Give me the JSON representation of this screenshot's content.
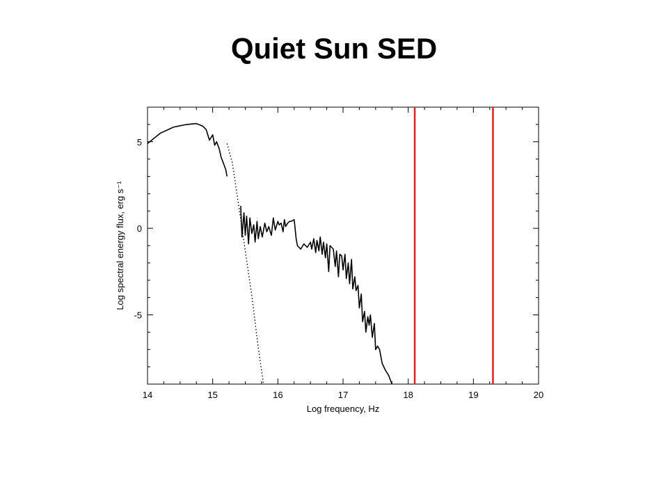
{
  "slide": {
    "title": "Quiet Sun SED"
  },
  "chart_data": {
    "type": "line",
    "title": "Quiet Sun SED",
    "xlabel": "Log frequency, Hz",
    "ylabel": "Log spectral energy flux, erg s⁻¹",
    "xlim": [
      14,
      20
    ],
    "ylim": [
      -9,
      7
    ],
    "x_ticks": [
      14,
      15,
      16,
      17,
      18,
      19,
      20
    ],
    "y_ticks": [
      5,
      0,
      -5
    ],
    "grid": false,
    "colors": {
      "observed": "#000000",
      "blackbody": "#000000",
      "markers": "#e02020"
    },
    "series": [
      {
        "style": "solid",
        "segments": [
          {
            "x": [
              14.0,
              14.2,
              14.4,
              14.6,
              14.75,
              14.85,
              14.9,
              14.95,
              15.0,
              15.03,
              15.06,
              15.1,
              15.13,
              15.16,
              15.2,
              15.22
            ],
            "y": [
              4.9,
              5.5,
              5.85,
              6.0,
              6.05,
              5.9,
              5.7,
              5.1,
              5.4,
              4.8,
              5.0,
              4.6,
              4.1,
              3.8,
              3.4,
              3.0
            ]
          },
          {
            "x": [
              15.43,
              15.45,
              15.48,
              15.5,
              15.52,
              15.55,
              15.57,
              15.6,
              15.63,
              15.65,
              15.68,
              15.7,
              15.73,
              15.76,
              15.8,
              15.83,
              15.86,
              15.9,
              15.93,
              15.96,
              16.0,
              16.02,
              16.05,
              16.08,
              16.1,
              16.12,
              16.15,
              16.18,
              16.2,
              16.25,
              16.28,
              16.3,
              16.35,
              16.4,
              16.45,
              16.5,
              16.52,
              16.55,
              16.58,
              16.6,
              16.63,
              16.65,
              16.68,
              16.7,
              16.73,
              16.75,
              16.78,
              16.8,
              16.85,
              16.88,
              16.9,
              16.93,
              16.95,
              16.98,
              17.0,
              17.03,
              17.05,
              17.08,
              17.1,
              17.13,
              17.15,
              17.18,
              17.2,
              17.23,
              17.25,
              17.28,
              17.3,
              17.33,
              17.35,
              17.38,
              17.4,
              17.42,
              17.45,
              17.48,
              17.5,
              17.53,
              17.56,
              17.6,
              17.65,
              17.7,
              17.75
            ],
            "y": [
              1.3,
              -0.5,
              0.9,
              -0.4,
              0.7,
              -0.9,
              0.6,
              -0.3,
              0.2,
              -0.8,
              0.4,
              -0.6,
              0.1,
              -0.5,
              0.3,
              -0.2,
              0.1,
              -0.4,
              0.6,
              -0.1,
              0.4,
              0.2,
              0.3,
              -0.2,
              0.5,
              0.1,
              0.3,
              0.4,
              0.4,
              0.5,
              -0.6,
              -1.0,
              -1.2,
              -0.9,
              -1.1,
              -0.8,
              -1.2,
              -0.6,
              -1.4,
              -0.7,
              -1.3,
              -0.5,
              -1.5,
              -0.8,
              -1.7,
              -0.9,
              -2.5,
              -1.0,
              -1.2,
              -2.2,
              -1.3,
              -2.8,
              -1.5,
              -1.6,
              -2.4,
              -1.5,
              -2.9,
              -2.0,
              -3.2,
              -1.8,
              -3.5,
              -2.8,
              -3.6,
              -3.3,
              -4.6,
              -3.8,
              -5.4,
              -4.8,
              -6.0,
              -5.1,
              -5.6,
              -5.0,
              -6.3,
              -5.5,
              -7.0,
              -6.8,
              -7.0,
              -7.8,
              -8.2,
              -8.5,
              -9.0
            ]
          }
        ]
      },
      {
        "style": "dotted",
        "x": [
          15.22,
          15.3,
          15.4,
          15.5,
          15.6,
          15.7,
          15.78
        ],
        "y": [
          4.9,
          3.8,
          1.3,
          -1.3,
          -3.9,
          -6.9,
          -9.0
        ]
      }
    ],
    "vertical_lines": [
      18.1,
      19.3
    ]
  }
}
